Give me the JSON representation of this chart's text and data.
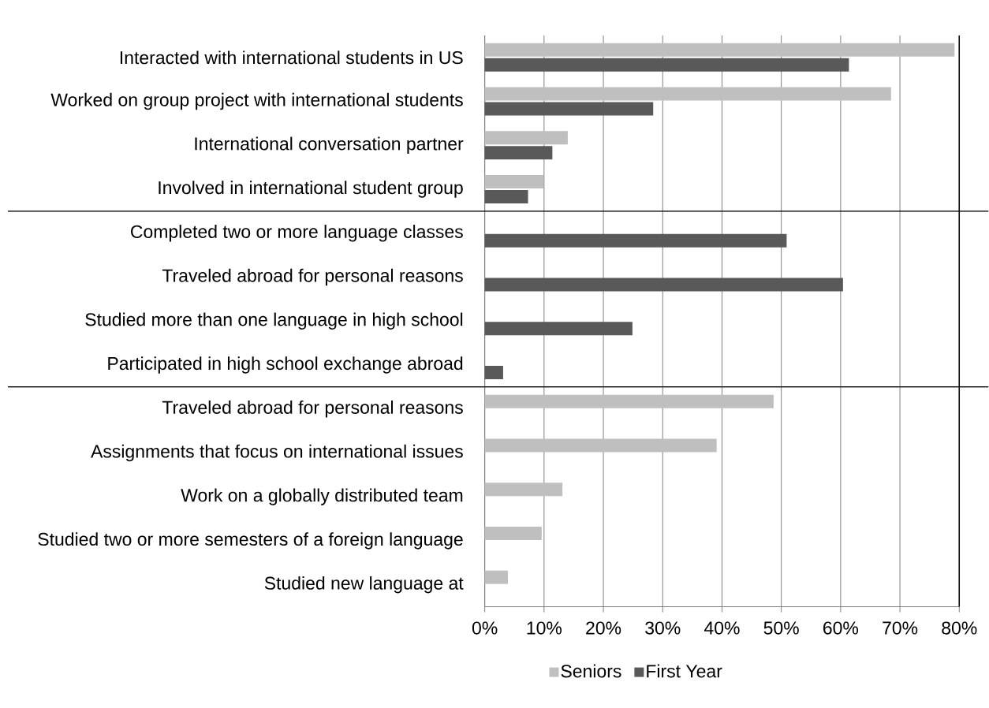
{
  "chart_data": {
    "type": "bar",
    "orientation": "horizontal",
    "categories": [
      "Interacted with international students in US",
      "Worked on group project with international students",
      "International conversation partner",
      "Involved in international student group",
      "Completed two or more language classes",
      "Traveled abroad for personal reasons",
      "Studied more than one language in high school",
      "Participated in high school exchange abroad",
      "Traveled abroad for personal reasons",
      "Assignments that focus on international issues",
      "Work on a globally distributed team",
      "Studied two or more semesters of a foreign language",
      "Studied new language at"
    ],
    "series": [
      {
        "name": "Seniors",
        "color": "#bfbfbf",
        "values": [
          79.2,
          68.5,
          14.0,
          9.9,
          null,
          null,
          null,
          null,
          48.7,
          39.1,
          13.1,
          9.6,
          3.9
        ]
      },
      {
        "name": "First Year",
        "color": "#595959",
        "values": [
          61.4,
          28.4,
          11.4,
          7.3,
          50.9,
          60.4,
          24.9,
          3.1,
          null,
          null,
          null,
          null,
          null
        ]
      }
    ],
    "xlim": [
      0,
      80
    ],
    "xticks": [
      {
        "value": 0,
        "label": "0%"
      },
      {
        "value": 10,
        "label": "10%"
      },
      {
        "value": 20,
        "label": "20%"
      },
      {
        "value": 30,
        "label": "30%"
      },
      {
        "value": 40,
        "label": "40%"
      },
      {
        "value": 50,
        "label": "50%"
      },
      {
        "value": 60,
        "label": "60%"
      },
      {
        "value": 70,
        "label": "70%"
      },
      {
        "value": 80,
        "label": "80%"
      }
    ],
    "grid": "x",
    "legend": "bottom"
  }
}
